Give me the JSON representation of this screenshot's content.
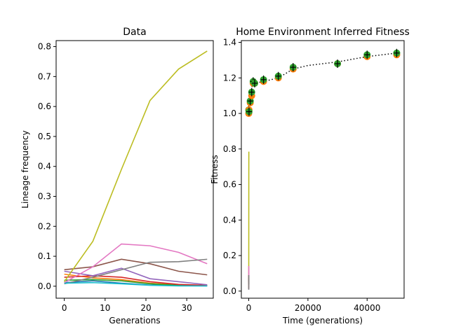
{
  "chart_data": [
    {
      "type": "line",
      "title": "Data",
      "xlabel": "Generations",
      "ylabel": "Lineage frequency",
      "xlim": [
        -2,
        36.5
      ],
      "ylim": [
        -0.04,
        0.82
      ],
      "xticks": [
        "0",
        "10",
        "20",
        "30"
      ],
      "xtick_values": [
        0,
        10,
        20,
        30
      ],
      "yticks": [
        "0.0",
        "0.1",
        "0.2",
        "0.3",
        "0.4",
        "0.5",
        "0.6",
        "0.7",
        "0.8"
      ],
      "ytick_values": [
        0,
        0.1,
        0.2,
        0.3,
        0.4,
        0.5,
        0.6,
        0.7,
        0.8
      ],
      "grid": false,
      "x": [
        0,
        7,
        14,
        21,
        28,
        35
      ],
      "series": [
        {
          "color": "#1f77b4",
          "values": [
            0.012,
            0.018,
            0.01,
            0.004,
            0.002,
            0.001
          ]
        },
        {
          "color": "#ff7f0e",
          "values": [
            0.04,
            0.028,
            0.022,
            0.01,
            0.004,
            0.002
          ]
        },
        {
          "color": "#2ca02c",
          "values": [
            0.02,
            0.022,
            0.018,
            0.008,
            0.003,
            0.002
          ]
        },
        {
          "color": "#d62728",
          "values": [
            0.03,
            0.035,
            0.03,
            0.015,
            0.006,
            0.003
          ]
        },
        {
          "color": "#9467bd",
          "values": [
            0.05,
            0.035,
            0.06,
            0.025,
            0.015,
            0.005
          ]
        },
        {
          "color": "#8c564b",
          "values": [
            0.055,
            0.065,
            0.09,
            0.075,
            0.05,
            0.038
          ]
        },
        {
          "color": "#e377c2",
          "values": [
            0.012,
            0.065,
            0.141,
            0.135,
            0.113,
            0.075
          ]
        },
        {
          "color": "#7f7f7f",
          "values": [
            0.008,
            0.03,
            0.055,
            0.08,
            0.082,
            0.09
          ]
        },
        {
          "color": "#bcbd22",
          "values": [
            0.015,
            0.15,
            0.39,
            0.62,
            0.725,
            0.785
          ]
        },
        {
          "color": "#17becf",
          "values": [
            0.01,
            0.012,
            0.008,
            0.003,
            0.001,
            0.001
          ]
        }
      ]
    },
    {
      "type": "scatter",
      "title": "Home Environment Inferred Fitness",
      "xlabel": "Time (generations)",
      "ylabel": "Fitness",
      "xlim": [
        -2500,
        52500
      ],
      "ylim": [
        -0.04,
        1.41
      ],
      "xticks": [
        "0",
        "20000",
        "40000"
      ],
      "xtick_values": [
        0,
        20000,
        40000
      ],
      "yticks": [
        "0.0",
        "0.2",
        "0.4",
        "0.6",
        "0.8",
        "1.0",
        "1.2",
        "1.4"
      ],
      "ytick_values": [
        0,
        0.2,
        0.4,
        0.6,
        0.8,
        1.0,
        1.2,
        1.4
      ],
      "grid": false,
      "points_x": [
        0,
        100,
        500,
        1000,
        1500,
        2000,
        5000,
        10000,
        15000,
        30000,
        40000,
        50000
      ],
      "orange_y": [
        1.0,
        1.02,
        1.06,
        1.1,
        1.17,
        1.17,
        1.18,
        1.2,
        1.25,
        1.28,
        1.32,
        1.33
      ],
      "green_y": [
        1.02,
        1.01,
        1.07,
        1.12,
        1.18,
        1.17,
        1.19,
        1.21,
        1.26,
        1.28,
        1.33,
        1.34
      ],
      "fit_line_x": [
        1000,
        2000,
        5000,
        10000,
        15000,
        20000,
        30000,
        40000,
        50000
      ],
      "fit_line_y": [
        1.15,
        1.17,
        1.18,
        1.2,
        1.25,
        1.27,
        1.29,
        1.32,
        1.34
      ],
      "inset_lines": [
        {
          "color": "#bcbd22",
          "x": [
            0,
            7,
            14,
            21,
            28,
            35
          ],
          "values": [
            0.015,
            0.15,
            0.39,
            0.62,
            0.725,
            0.785
          ]
        },
        {
          "color": "#e377c2",
          "x": [
            0,
            7,
            14,
            21,
            28,
            35
          ],
          "values": [
            0.012,
            0.065,
            0.141,
            0.135,
            0.113,
            0.075
          ]
        },
        {
          "color": "#8c564b",
          "x": [
            0,
            7,
            14,
            21,
            28,
            35
          ],
          "values": [
            0.055,
            0.065,
            0.09,
            0.075,
            0.05,
            0.038
          ]
        },
        {
          "color": "#7f7f7f",
          "x": [
            0,
            7,
            14,
            21,
            28,
            35
          ],
          "values": [
            0.008,
            0.03,
            0.055,
            0.08,
            0.082,
            0.09
          ]
        }
      ],
      "colors": {
        "orange": "#ff7f0e",
        "green": "#2ca02c",
        "errorbar": "#000000",
        "fit": "#000000"
      }
    }
  ]
}
